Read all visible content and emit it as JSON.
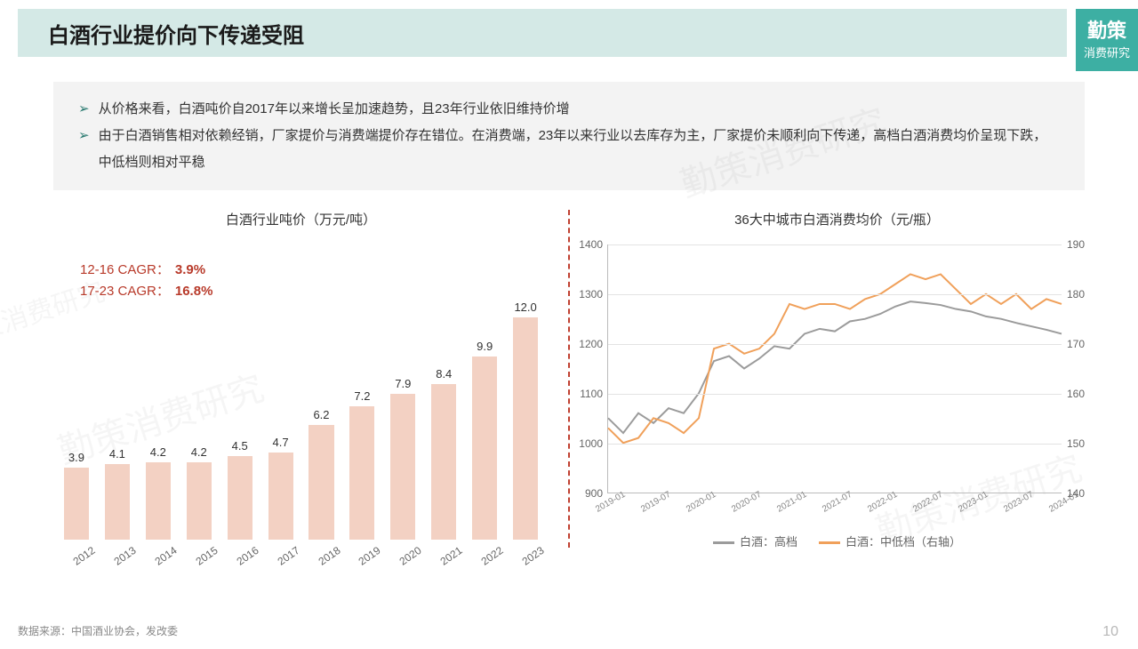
{
  "title": "白酒行业提价向下传递受阻",
  "logo": {
    "line1": "勤策",
    "line2": "消费研究"
  },
  "bullets": [
    "从价格来看，白酒吨价自2017年以来增长呈加速趋势，且23年行业依旧维持价增",
    "由于白酒销售相对依赖经销，厂家提价与消费端提价存在错位。在消费端，23年以来行业以去库存为主，厂家提价未顺利向下传递，高档白酒消费均价呈现下跌，中低档则相对平稳"
  ],
  "cagr": [
    {
      "label": "12-16 CAGR：",
      "value": "3.9%"
    },
    {
      "label": "17-23 CAGR：",
      "value": "16.8%"
    }
  ],
  "bar_chart": {
    "title": "白酒行业吨价（万元/吨）",
    "type": "bar",
    "categories": [
      "2012",
      "2013",
      "2014",
      "2015",
      "2016",
      "2017",
      "2018",
      "2019",
      "2020",
      "2021",
      "2022",
      "2023"
    ],
    "values": [
      3.9,
      4.1,
      4.2,
      4.2,
      4.5,
      4.7,
      6.2,
      7.2,
      7.9,
      8.4,
      9.9,
      12.0
    ],
    "bar_color": "#f3d1c3",
    "value_color": "#333333",
    "ymax": 12.5,
    "bar_width_pct": 78
  },
  "line_chart": {
    "title": "36大中城市白酒消费均价（元/瓶）",
    "type": "line",
    "x_labels": [
      "2019-01",
      "2019-07",
      "2020-01",
      "2020-07",
      "2021-01",
      "2021-07",
      "2022-01",
      "2022-07",
      "2023-01",
      "2023-07",
      "2024-01"
    ],
    "left_axis": {
      "min": 900,
      "max": 1400,
      "step": 100
    },
    "right_axis": {
      "min": 140,
      "max": 190,
      "step": 10
    },
    "grid_color": "#e3e3e3",
    "series": [
      {
        "name": "白酒：高档",
        "color": "#9b9b9b",
        "axis": "left",
        "points": [
          1050,
          1020,
          1060,
          1040,
          1070,
          1060,
          1100,
          1165,
          1175,
          1150,
          1170,
          1195,
          1190,
          1220,
          1230,
          1225,
          1245,
          1250,
          1260,
          1275,
          1285,
          1282,
          1278,
          1270,
          1265,
          1255,
          1250,
          1242,
          1235,
          1228,
          1220
        ]
      },
      {
        "name": "白酒：中低档（右轴）",
        "color": "#f0a05a",
        "axis": "right",
        "points": [
          153,
          150,
          151,
          155,
          154,
          152,
          155,
          169,
          170,
          168,
          169,
          172,
          178,
          177,
          178,
          178,
          177,
          179,
          180,
          182,
          184,
          183,
          184,
          181,
          178,
          180,
          178,
          180,
          177,
          179,
          178
        ]
      }
    ],
    "legend": [
      {
        "label": "白酒：高档",
        "color": "#9b9b9b"
      },
      {
        "label": "白酒：中低档（右轴）",
        "color": "#f0a05a"
      }
    ]
  },
  "source": "数据来源：中国酒业协会，发改委",
  "page_number": "10",
  "watermark_text": "勤策消费研究"
}
